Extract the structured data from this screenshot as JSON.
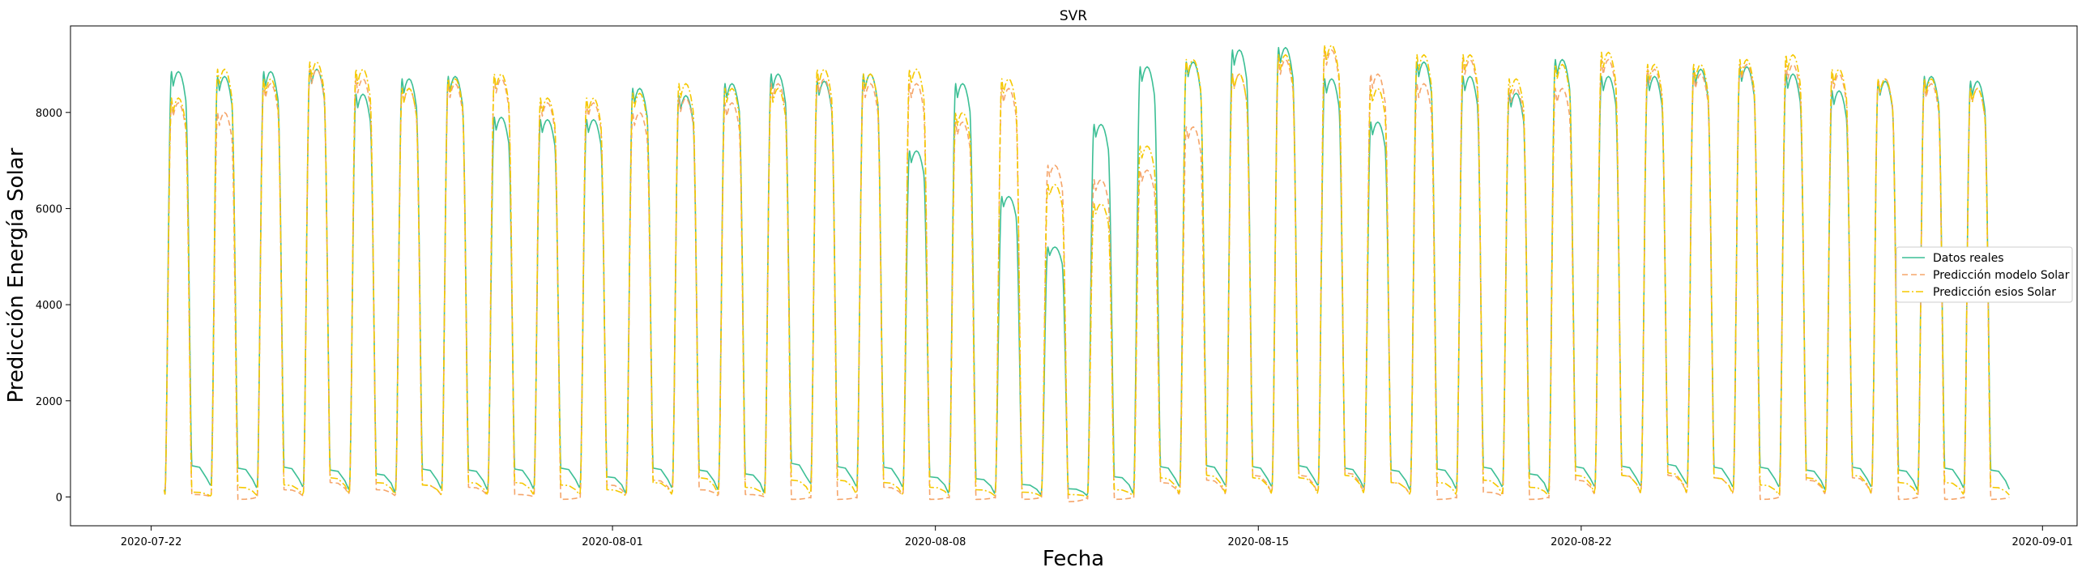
{
  "chart_data": {
    "type": "line",
    "title": "SVR",
    "xlabel": "Fecha",
    "ylabel": "Predicción Energía Solar",
    "x_ticks": [
      "2020-07-22",
      "2020-08-01",
      "2020-08-08",
      "2020-08-15",
      "2020-08-22",
      "2020-09-01"
    ],
    "y_ticks": [
      0,
      2000,
      4000,
      6000,
      8000
    ],
    "xlim": [
      "2020-07-20T06:00",
      "2020-09-01T18:00"
    ],
    "ylim": [
      -600,
      9800
    ],
    "x_start_date": "2020-07-22",
    "grid": false,
    "legend_position": "center-right",
    "series": [
      {
        "name": "Datos reales",
        "color": "#3cbf95",
        "dash": "solid",
        "daily_peaks": [
          8850,
          8750,
          8850,
          8900,
          8380,
          8700,
          8750,
          7900,
          7850,
          7850,
          8500,
          8350,
          8600,
          8800,
          8650,
          8800,
          7200,
          8600,
          6250,
          5200,
          7750,
          8950,
          9050,
          9300,
          9350,
          8700,
          7800,
          9050,
          8750,
          8400,
          9100,
          8750,
          8750,
          8900,
          8950,
          8800,
          8450,
          8650,
          8750,
          8650
        ],
        "daily_night": [
          650,
          600,
          620,
          560,
          480,
          580,
          560,
          580,
          600,
          420,
          600,
          560,
          480,
          700,
          630,
          620,
          420,
          380,
          260,
          170,
          420,
          630,
          650,
          630,
          650,
          600,
          560,
          580,
          620,
          480,
          630,
          640,
          680,
          620,
          620,
          560,
          620,
          560,
          600,
          560
        ]
      },
      {
        "name": "Predicción modelo Solar",
        "color": "#f5a56a",
        "dash": "dashed",
        "daily_peaks": [
          8200,
          8000,
          8600,
          8900,
          8700,
          8500,
          8600,
          8700,
          8200,
          8200,
          8000,
          8300,
          8200,
          8600,
          8700,
          8600,
          8600,
          7800,
          8500,
          6900,
          6600,
          6800,
          7700,
          8800,
          9100,
          9300,
          8800,
          8600,
          9100,
          8500,
          8500,
          9100,
          8900,
          8800,
          9000,
          9000,
          8800,
          8700,
          8600,
          8500
        ],
        "daily_night": [
          50,
          -50,
          150,
          300,
          150,
          250,
          200,
          50,
          -50,
          250,
          350,
          150,
          50,
          -50,
          -50,
          200,
          -50,
          -50,
          -50,
          -100,
          -50,
          300,
          350,
          450,
          450,
          500,
          300,
          -50,
          100,
          -50,
          350,
          450,
          450,
          400,
          -50,
          350,
          400,
          -50,
          -50,
          -50
        ]
      },
      {
        "name": "Predicción esios Solar",
        "color": "#f5c800",
        "dash": "dashdot",
        "daily_peaks": [
          8300,
          8900,
          8700,
          9050,
          8900,
          8500,
          8700,
          8800,
          8300,
          8300,
          8400,
          8600,
          8500,
          8500,
          8900,
          8800,
          8900,
          8000,
          8700,
          6500,
          6100,
          7300,
          9100,
          8800,
          9200,
          9400,
          8500,
          9200,
          9200,
          8700,
          9000,
          9250,
          9000,
          9000,
          9100,
          9200,
          8900,
          8700,
          8700,
          8500
        ],
        "daily_night": [
          100,
          200,
          250,
          400,
          300,
          250,
          300,
          300,
          250,
          150,
          300,
          400,
          200,
          350,
          350,
          300,
          200,
          150,
          100,
          50,
          150,
          400,
          450,
          400,
          400,
          450,
          300,
          300,
          350,
          200,
          450,
          450,
          500,
          400,
          250,
          400,
          450,
          300,
          300,
          200
        ]
      }
    ]
  }
}
